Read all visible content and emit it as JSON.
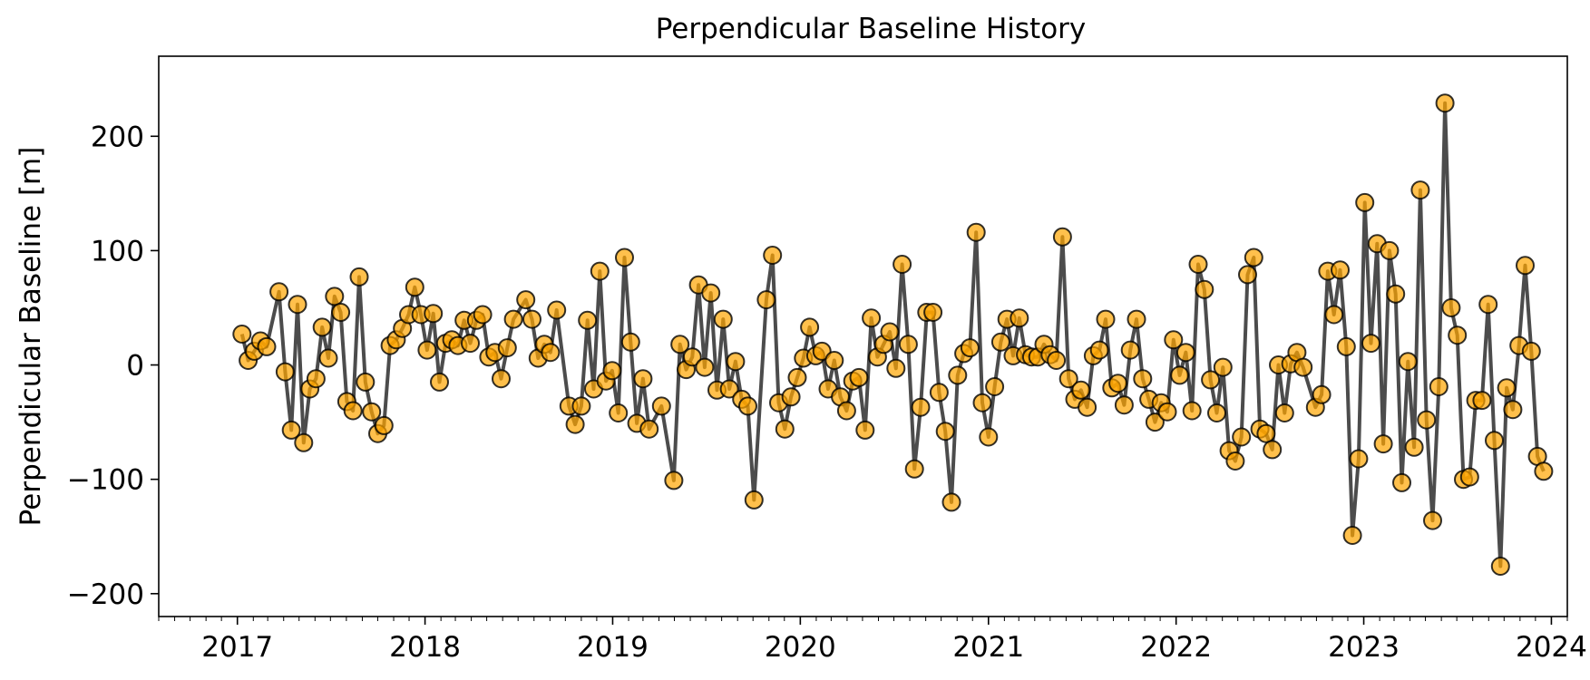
{
  "chart_data": {
    "type": "line",
    "title": "Perpendicular Baseline History",
    "xlabel": "",
    "ylabel": "Perpendicular Baseline [m]",
    "xlim": [
      "2016-08-01",
      "2024-02-01"
    ],
    "ylim": [
      -220,
      270
    ],
    "x_ticks": [
      "2017-01-01",
      "2018-01-01",
      "2019-01-01",
      "2020-01-01",
      "2021-01-01",
      "2022-01-01",
      "2023-01-01",
      "2024-01-01"
    ],
    "x_tick_labels": [
      "2017",
      "2018",
      "2019",
      "2020",
      "2021",
      "2022",
      "2023",
      "2024"
    ],
    "y_ticks": [
      -200,
      -100,
      0,
      100,
      200
    ],
    "y_tick_labels": [
      "−200",
      "−100",
      "0",
      "100",
      "200"
    ],
    "grid": false,
    "legend": "none",
    "colors": {
      "line": "#000000",
      "line_opacity": 0.7,
      "marker_fill": "#FFA500",
      "marker_fill_opacity": 0.7,
      "marker_edge": "#000000"
    },
    "series": [
      {
        "x": [
          "2017-01-10",
          "2017-01-22",
          "2017-02-03",
          "2017-02-15",
          "2017-02-27",
          "2017-03-23",
          "2017-04-04",
          "2017-04-16",
          "2017-04-28",
          "2017-05-10",
          "2017-05-22",
          "2017-06-03",
          "2017-06-15",
          "2017-06-27",
          "2017-07-09",
          "2017-07-21",
          "2017-08-02",
          "2017-08-14",
          "2017-08-26",
          "2017-09-07",
          "2017-09-19",
          "2017-10-01",
          "2017-10-13",
          "2017-10-25",
          "2017-11-06",
          "2017-11-18",
          "2017-11-30",
          "2017-12-12",
          "2017-12-24",
          "2018-01-05",
          "2018-01-17",
          "2018-01-29",
          "2018-02-10",
          "2018-02-22",
          "2018-03-06",
          "2018-03-18",
          "2018-03-30",
          "2018-04-11",
          "2018-04-23",
          "2018-05-05",
          "2018-05-17",
          "2018-05-29",
          "2018-06-10",
          "2018-06-22",
          "2018-07-16",
          "2018-07-28",
          "2018-08-09",
          "2018-08-21",
          "2018-09-02",
          "2018-09-14",
          "2018-10-08",
          "2018-10-20",
          "2018-11-01",
          "2018-11-13",
          "2018-11-25",
          "2018-12-07",
          "2018-12-19",
          "2018-12-31",
          "2019-01-12",
          "2019-01-24",
          "2019-02-05",
          "2019-02-17",
          "2019-03-01",
          "2019-03-13",
          "2019-04-06",
          "2019-04-30",
          "2019-05-12",
          "2019-05-24",
          "2019-06-05",
          "2019-06-17",
          "2019-06-29",
          "2019-07-11",
          "2019-07-23",
          "2019-08-04",
          "2019-08-16",
          "2019-08-28",
          "2019-09-09",
          "2019-09-21",
          "2019-10-03",
          "2019-10-27",
          "2019-11-08",
          "2019-11-20",
          "2019-12-02",
          "2019-12-14",
          "2019-12-26",
          "2020-01-07",
          "2020-01-19",
          "2020-01-31",
          "2020-02-12",
          "2020-02-24",
          "2020-03-07",
          "2020-03-19",
          "2020-03-31",
          "2020-04-12",
          "2020-04-24",
          "2020-05-06",
          "2020-05-18",
          "2020-05-30",
          "2020-06-11",
          "2020-06-23",
          "2020-07-05",
          "2020-07-17",
          "2020-07-29",
          "2020-08-10",
          "2020-08-22",
          "2020-09-03",
          "2020-09-15",
          "2020-09-27",
          "2020-10-09",
          "2020-10-21",
          "2020-11-02",
          "2020-11-14",
          "2020-11-26",
          "2020-12-08",
          "2020-12-20",
          "2021-01-01",
          "2021-01-13",
          "2021-01-25",
          "2021-02-06",
          "2021-02-18",
          "2021-03-02",
          "2021-03-14",
          "2021-03-26",
          "2021-04-07",
          "2021-04-19",
          "2021-05-01",
          "2021-05-13",
          "2021-05-25",
          "2021-06-06",
          "2021-06-18",
          "2021-06-30",
          "2021-07-12",
          "2021-07-24",
          "2021-08-05",
          "2021-08-17",
          "2021-08-29",
          "2021-09-10",
          "2021-09-22",
          "2021-10-04",
          "2021-10-16",
          "2021-10-28",
          "2021-11-09",
          "2021-11-21",
          "2021-12-03",
          "2021-12-15",
          "2021-12-27",
          "2022-01-08",
          "2022-01-20",
          "2022-02-01",
          "2022-02-13",
          "2022-02-25",
          "2022-03-09",
          "2022-03-21",
          "2022-04-02",
          "2022-04-14",
          "2022-04-26",
          "2022-05-08",
          "2022-05-20",
          "2022-06-01",
          "2022-06-13",
          "2022-06-25",
          "2022-07-07",
          "2022-07-19",
          "2022-07-31",
          "2022-08-12",
          "2022-08-24",
          "2022-09-05",
          "2022-09-29",
          "2022-10-11",
          "2022-10-23",
          "2022-11-04",
          "2022-11-16",
          "2022-11-28",
          "2022-12-10",
          "2022-12-22",
          "2023-01-03",
          "2023-01-15",
          "2023-01-27",
          "2023-02-08",
          "2023-02-20",
          "2023-03-04",
          "2023-03-16",
          "2023-03-28",
          "2023-04-09",
          "2023-04-21",
          "2023-05-03",
          "2023-05-15",
          "2023-05-27",
          "2023-06-08",
          "2023-06-20",
          "2023-07-02",
          "2023-07-14",
          "2023-07-26",
          "2023-08-07",
          "2023-08-19",
          "2023-08-31",
          "2023-09-12",
          "2023-09-24",
          "2023-10-06",
          "2023-10-18",
          "2023-10-30",
          "2023-11-11",
          "2023-11-23",
          "2023-12-05",
          "2023-12-17"
        ],
        "y": [
          27,
          4,
          12,
          21,
          16,
          64,
          -6,
          -57,
          53,
          -68,
          -21,
          -12,
          33,
          6,
          60,
          46,
          -32,
          -40,
          77,
          -15,
          -41,
          -60,
          -53,
          17,
          22,
          32,
          44,
          68,
          44,
          13,
          45,
          -15,
          19,
          22,
          17,
          39,
          19,
          39,
          44,
          7,
          11,
          -12,
          15,
          40,
          57,
          40,
          6,
          18,
          11,
          48,
          -36,
          -52,
          -36,
          39,
          -21,
          82,
          -14,
          -5,
          -42,
          94,
          20,
          -51,
          -12,
          -56,
          -36,
          -101,
          18,
          -4,
          7,
          70,
          -2,
          63,
          -22,
          40,
          -21,
          3,
          -30,
          -36,
          -118,
          57,
          96,
          -33,
          -56,
          -28,
          -11,
          6,
          33,
          8,
          12,
          -21,
          4,
          -28,
          -40,
          -14,
          -11,
          -57,
          41,
          7,
          18,
          29,
          -3,
          88,
          18,
          -91,
          -37,
          46,
          46,
          -24,
          -58,
          -120,
          -9,
          10,
          15,
          116,
          -33,
          -63,
          -19,
          20,
          40,
          8,
          41,
          9,
          7,
          7,
          18,
          9,
          4,
          112,
          -12,
          -30,
          -22,
          -37,
          8,
          13,
          40,
          -20,
          -16,
          -35,
          13,
          40,
          -12,
          -30,
          -50,
          -33,
          -41,
          22,
          -9,
          11,
          -40,
          88,
          66,
          -13,
          -42,
          -2,
          -75,
          -84,
          -63,
          79,
          94,
          -56,
          -60,
          -74,
          0,
          -42,
          1,
          11,
          -2,
          -37,
          -26,
          82,
          44,
          83,
          16,
          -149,
          -82,
          142,
          19,
          106,
          -69,
          100,
          62,
          -103,
          3,
          -72,
          153,
          -48,
          -136,
          -19,
          229,
          50,
          26,
          -100,
          -98,
          -31,
          -31,
          53,
          -66,
          -176,
          -20,
          -39,
          17,
          87,
          12,
          -80,
          -93
        ]
      }
    ]
  }
}
